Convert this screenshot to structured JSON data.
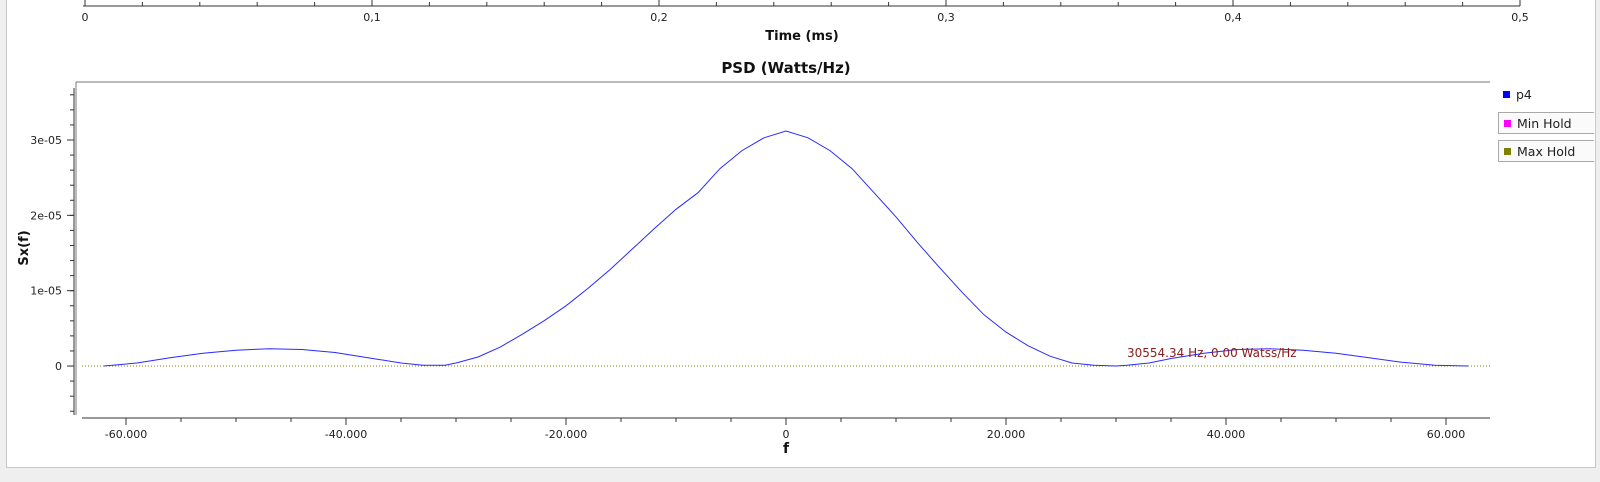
{
  "top_axis": {
    "label": "Time (ms)",
    "ticks": [
      "0",
      "0,1",
      "0,2",
      "0,3",
      "0,4",
      "0,5"
    ],
    "range": [
      0,
      0.5
    ]
  },
  "legend": {
    "items": [
      {
        "label": "p4",
        "color": "#0000ff"
      },
      {
        "label": "Min Hold",
        "color": "#ff00ff"
      },
      {
        "label": "Max Hold",
        "color": "#808000"
      }
    ]
  },
  "marker": {
    "text": "30554.34 Hz, 0.00 Watss/Hz"
  },
  "chart_data": {
    "type": "line",
    "title": "PSD (Watts/Hz)",
    "xlabel": "f",
    "ylabel": "Sx(f)",
    "xlim": [
      -64000,
      64000
    ],
    "ylim": [
      -6.5e-06,
      3.77e-05
    ],
    "x_ticks": [
      -60000,
      -40000,
      -20000,
      0,
      20000,
      40000,
      60000
    ],
    "x_tick_labels": [
      "-60.000",
      "-40.000",
      "-20.000",
      "0",
      "20.000",
      "40.000",
      "60.000"
    ],
    "y_ticks": [
      0,
      1e-05,
      2e-05,
      3e-05
    ],
    "y_tick_labels": [
      "0",
      "1e-05",
      "2e-05",
      "3e-05"
    ],
    "grid": false,
    "legend_position": "right",
    "series": [
      {
        "name": "p4",
        "color": "#2a2aff",
        "x": [
          -62000,
          -59000,
          -56000,
          -53000,
          -50000,
          -47000,
          -44000,
          -41000,
          -38000,
          -35000,
          -33000,
          -31000,
          -30000,
          -28000,
          -26000,
          -24000,
          -22000,
          -20000,
          -18000,
          -16000,
          -14000,
          -12000,
          -10000,
          -8000,
          -6000,
          -4000,
          -2000,
          0,
          2000,
          4000,
          6000,
          8000,
          10000,
          12000,
          14000,
          16000,
          18000,
          20000,
          22000,
          24000,
          26000,
          28000,
          30000,
          31000,
          33000,
          35000,
          38000,
          41000,
          44000,
          47000,
          50000,
          53000,
          56000,
          59000,
          62000
        ],
        "y": [
          0,
          4e-07,
          1.1e-06,
          1.7e-06,
          2.1e-06,
          2.3e-06,
          2.2e-06,
          1.8e-06,
          1.1e-06,
          4e-07,
          1e-07,
          1e-07,
          4e-07,
          1.2e-06,
          2.5e-06,
          4.2e-06,
          6e-06,
          8e-06,
          1.03e-05,
          1.28e-05,
          1.55e-05,
          1.82e-05,
          2.08e-05,
          2.3e-05,
          2.62e-05,
          2.86e-05,
          3.03e-05,
          3.12e-05,
          3.03e-05,
          2.86e-05,
          2.62e-05,
          2.3e-05,
          1.98e-05,
          1.63e-05,
          1.3e-05,
          9.8e-06,
          6.8e-06,
          4.5e-06,
          2.7e-06,
          1.3e-06,
          4e-07,
          1e-07,
          0,
          1e-07,
          4e-07,
          1e-06,
          1.7e-06,
          2.2e-06,
          2.3e-06,
          2.1e-06,
          1.7e-06,
          1.1e-06,
          5e-07,
          1e-07,
          0
        ]
      },
      {
        "name": "Min Hold",
        "color": "#ff00ff",
        "x": [
          -64000,
          64000
        ],
        "y": [
          0,
          0
        ]
      },
      {
        "name": "Max Hold",
        "color": "#808000",
        "x": [
          -64000,
          64000
        ],
        "y": [
          0,
          0
        ]
      }
    ]
  }
}
